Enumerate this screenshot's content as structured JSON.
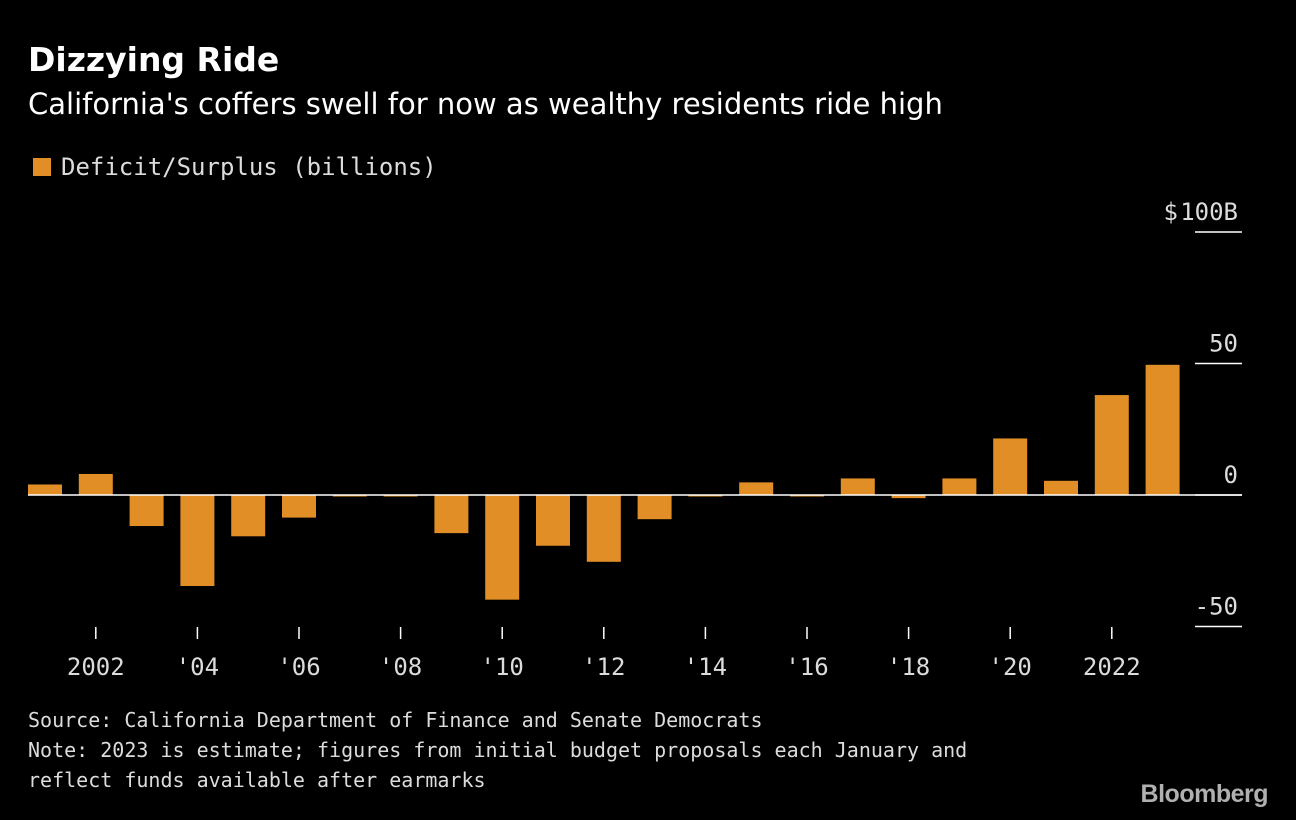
{
  "header": {
    "title": "Dizzying Ride",
    "subtitle": "California's coffers swell for now as wealthy residents ride high"
  },
  "legend": {
    "label": "Deficit/Surplus (billions)"
  },
  "footer": {
    "source": "Source: California Department of Finance and Senate Democrats",
    "note_line1": "Note: 2023 is estimate; figures from initial budget proposals each January and",
    "note_line2": "reflect funds available after earmarks",
    "logo": "Bloomberg"
  },
  "colors": {
    "bar": "#E08E25",
    "background": "#000000",
    "axis": "#ffffff"
  },
  "chart_data": {
    "type": "bar",
    "categories": [
      2001,
      2002,
      2003,
      2004,
      2005,
      2006,
      2007,
      2008,
      2009,
      2010,
      2011,
      2012,
      2013,
      2014,
      2015,
      2016,
      2017,
      2018,
      2019,
      2020,
      2021,
      2022,
      2023
    ],
    "series": [
      {
        "name": "Deficit/Surplus (billions)",
        "values": [
          4,
          8,
          -11.8,
          -34.6,
          -15.7,
          -8.6,
          -0.2,
          -0.3,
          -14.5,
          -39.8,
          -19.3,
          -25.4,
          -9.2,
          -0.2,
          4.8,
          -0.3,
          6.3,
          -1.2,
          6.3,
          21.5,
          5.4,
          38,
          49.5
        ]
      }
    ],
    "ylim": [
      -50,
      100
    ],
    "yticks": [
      -50,
      0,
      50,
      100
    ],
    "ytick_labels": [
      "-50",
      "0",
      "50",
      "100B"
    ],
    "y_currency_prefix": "$",
    "xticks": [
      {
        "year": 2002,
        "label": "2002"
      },
      {
        "year": 2004,
        "label": "'04"
      },
      {
        "year": 2006,
        "label": "'06"
      },
      {
        "year": 2008,
        "label": "'08"
      },
      {
        "year": 2010,
        "label": "'10"
      },
      {
        "year": 2012,
        "label": "'12"
      },
      {
        "year": 2014,
        "label": "'14"
      },
      {
        "year": 2016,
        "label": "'16"
      },
      {
        "year": 2018,
        "label": "'18"
      },
      {
        "year": 2020,
        "label": "'20"
      },
      {
        "year": 2022,
        "label": "2022"
      }
    ],
    "legend_position": "top-left",
    "grid": false
  }
}
